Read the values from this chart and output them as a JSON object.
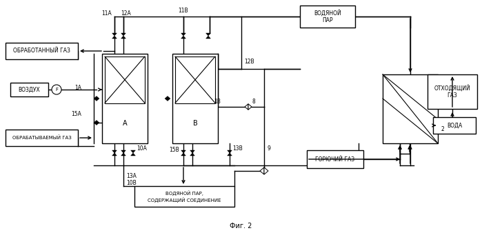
{
  "background_color": "#ffffff",
  "line_color": "#000000",
  "labels": {
    "vodyanoy_par": "ВОДЯНОЙ\nПАР",
    "otkhodyashchy_gaz": "ОТХОДЯЩИЙ\nГАЗ",
    "voda": "ВОДА",
    "goryuchy_gaz": "ГОРЮЧИЙ ГАЗ",
    "obrabotanny_gaz": "ОБРАБОТАННЫЙ ГАЗ",
    "vozdukh": "ВОЗДУХ",
    "obrabatyvaemy_gaz": "ОБРАБАТЫВАЕМЫЙ ГАЗ",
    "vodyanoy_par_soed": "ВОДЯНОЙ ПАР,\nСОДЕРЖАЩИЙ СОЕДИНЕНИЕ",
    "A": "A",
    "B": "B",
    "fig": "Фиг. 2",
    "F": "F"
  },
  "numbers": {
    "1A": "1А",
    "1B": "1В",
    "2": "2",
    "8": "8",
    "9": "9",
    "10A": "10А",
    "10B": "10В",
    "11A": "11А",
    "11B": "11В",
    "12A": "12А",
    "12B": "12В",
    "13A": "13А",
    "13B": "13В",
    "15A": "15А",
    "15B": "15В"
  }
}
